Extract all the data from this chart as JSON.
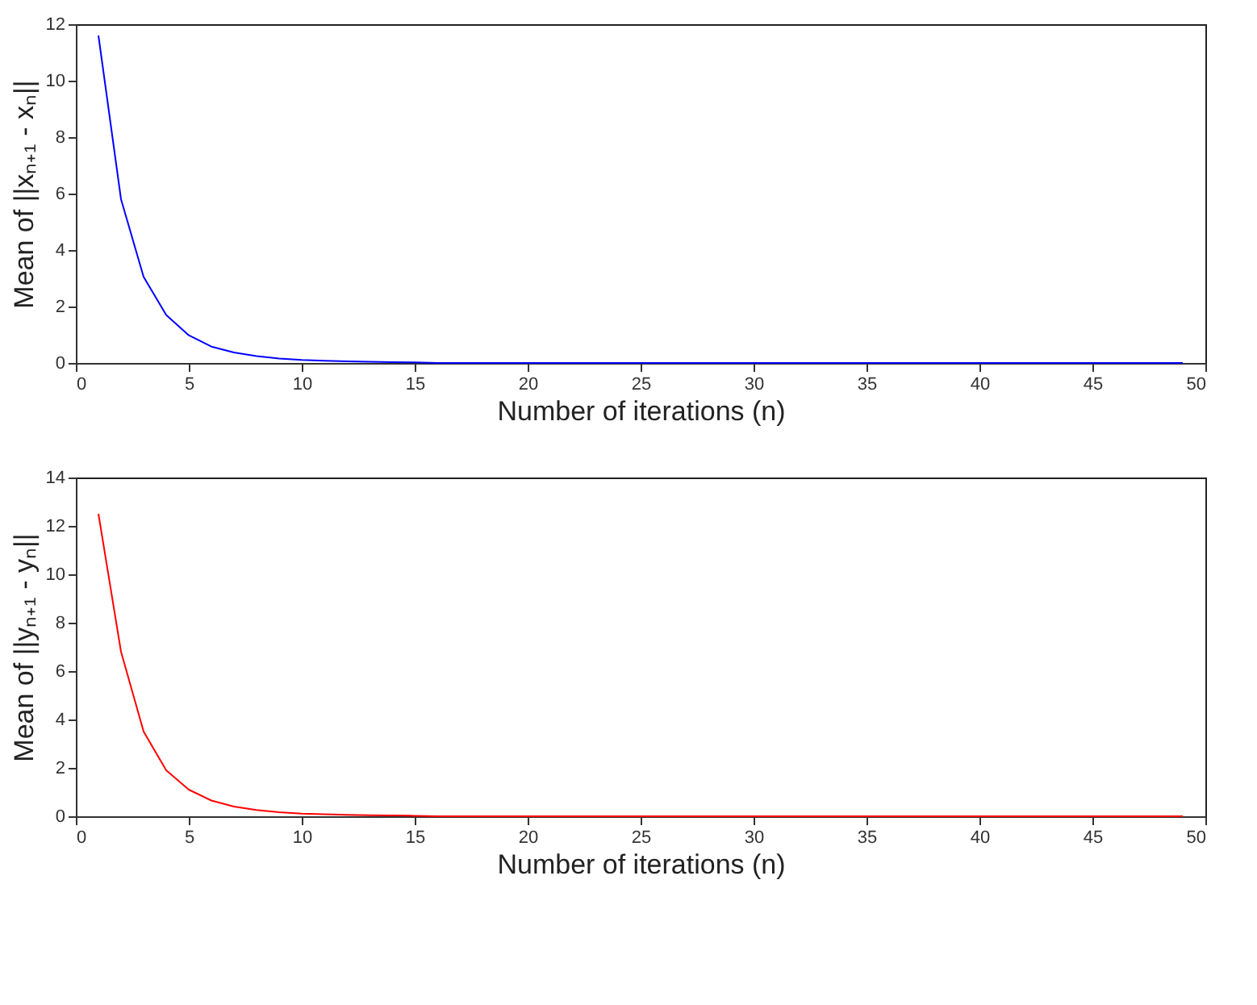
{
  "chart_data": [
    {
      "type": "line",
      "xlabel": "Number of iterations (n)",
      "ylabel": "Mean of ||xₙ₊₁ - xₙ||",
      "xlim": [
        0,
        50
      ],
      "xticks": [
        0,
        5,
        10,
        15,
        20,
        25,
        30,
        35,
        40,
        45,
        50
      ],
      "ylim": [
        0,
        12
      ],
      "yticks": [
        0,
        2,
        4,
        6,
        8,
        10,
        12
      ],
      "grid": false,
      "marker": "none",
      "line_style": "solid",
      "x": [
        1,
        2,
        3,
        4,
        5,
        6,
        7,
        8,
        9,
        10,
        11,
        12,
        13,
        14,
        15,
        16,
        17,
        18,
        19,
        20,
        21,
        22,
        23,
        24,
        25,
        26,
        27,
        28,
        29,
        30,
        31,
        32,
        33,
        34,
        35,
        36,
        37,
        38,
        39,
        40,
        41,
        42,
        43,
        44,
        45,
        46,
        47,
        48,
        49
      ],
      "series": [
        {
          "color": "#0000ff",
          "values": [
            11.6,
            5.8,
            3.05,
            1.7,
            0.98,
            0.58,
            0.37,
            0.24,
            0.16,
            0.11,
            0.08,
            0.06,
            0.04,
            0.03,
            0.02,
            0,
            0,
            0,
            0,
            0,
            0,
            0,
            0,
            0,
            0,
            0,
            0,
            0,
            0,
            0,
            0,
            0,
            0,
            0,
            0,
            0,
            0,
            0,
            0,
            0,
            0,
            0,
            0,
            0,
            0,
            0,
            0,
            0,
            0
          ]
        }
      ]
    },
    {
      "type": "line",
      "xlabel": "Number of iterations (n)",
      "ylabel": "Mean of ||yₙ₊₁ - yₙ||",
      "xlim": [
        0,
        50
      ],
      "xticks": [
        0,
        5,
        10,
        15,
        20,
        25,
        30,
        35,
        40,
        45,
        50
      ],
      "ylim": [
        0,
        14
      ],
      "yticks": [
        0,
        2,
        4,
        6,
        8,
        10,
        12,
        14
      ],
      "grid": false,
      "marker": "none",
      "line_style": "solid",
      "x": [
        1,
        2,
        3,
        4,
        5,
        6,
        7,
        8,
        9,
        10,
        11,
        12,
        13,
        14,
        15,
        16,
        17,
        18,
        19,
        20,
        21,
        22,
        23,
        24,
        25,
        26,
        27,
        28,
        29,
        30,
        31,
        32,
        33,
        34,
        35,
        36,
        37,
        38,
        39,
        40,
        41,
        42,
        43,
        44,
        45,
        46,
        47,
        48,
        49
      ],
      "series": [
        {
          "color": "#ff0000",
          "values": [
            12.5,
            6.8,
            3.5,
            1.9,
            1.1,
            0.65,
            0.4,
            0.26,
            0.17,
            0.11,
            0.08,
            0.06,
            0.04,
            0.03,
            0.02,
            0,
            0,
            0,
            0,
            0,
            0,
            0,
            0,
            0,
            0,
            0,
            0,
            0,
            0,
            0,
            0,
            0,
            0,
            0,
            0,
            0,
            0,
            0,
            0,
            0,
            0,
            0,
            0,
            0,
            0,
            0,
            0,
            0,
            0
          ]
        }
      ]
    }
  ]
}
